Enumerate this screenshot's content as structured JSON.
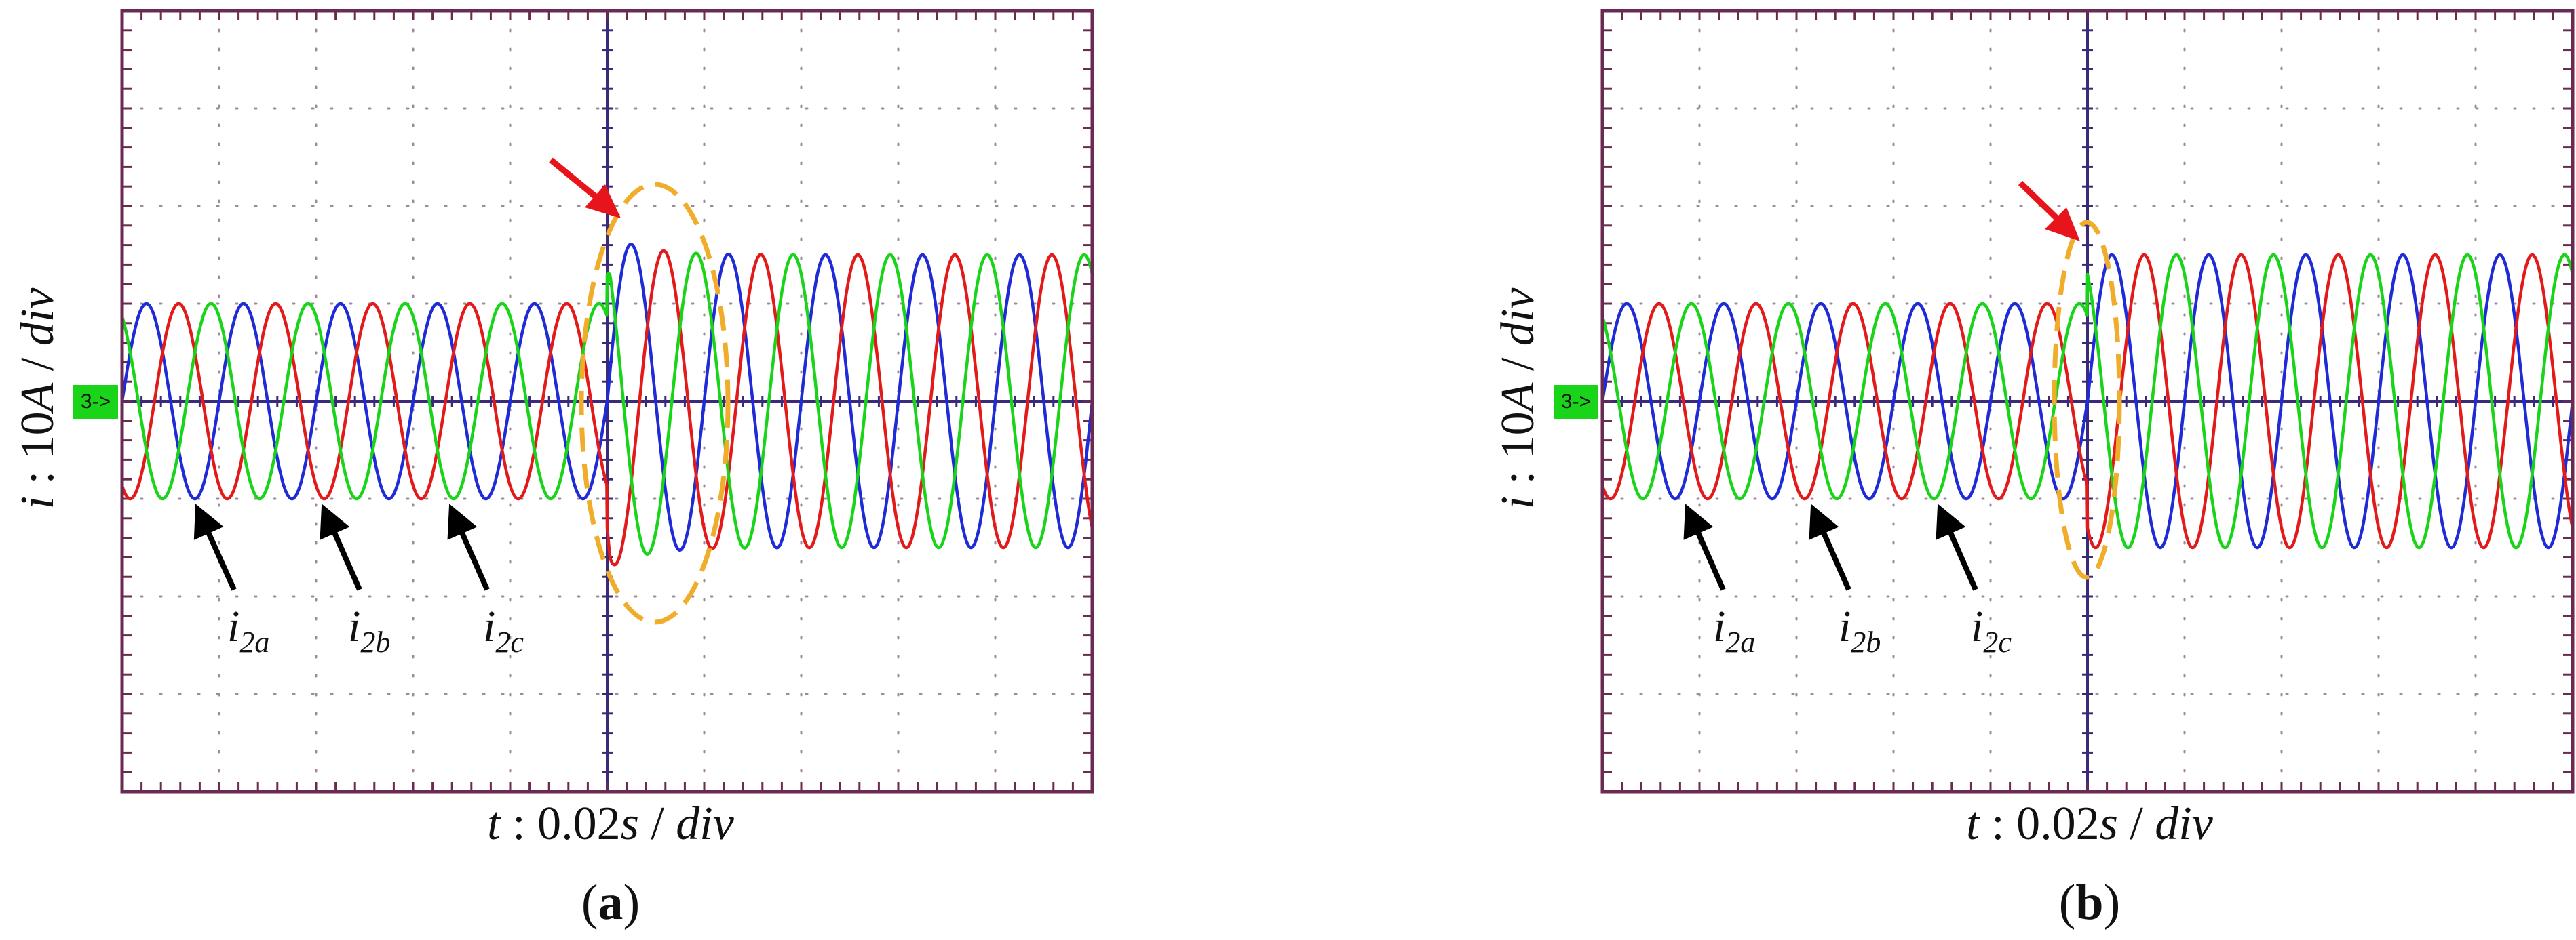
{
  "chart_data": [
    {
      "id": "a",
      "type": "line",
      "panel_label": {
        "open": "(",
        "letter": "a",
        "close": ")"
      },
      "xlabel": {
        "var": "t",
        "sep": " : ",
        "value": "0.02",
        "unit": "s",
        "slash": " / ",
        "div": "div"
      },
      "ylabel": {
        "var": "i",
        "sep": " : ",
        "value": "10",
        "unit": "A",
        "slash": " / ",
        "div": "div"
      },
      "channel_marker": "3->",
      "grid": true,
      "divisions": {
        "x": 10,
        "y": 8
      },
      "xlim_div": [
        0,
        10
      ],
      "ylim_div": [
        -4,
        4
      ],
      "transition_div": 5,
      "frequency_cycles_per_div": 1.0,
      "series": [
        {
          "name": "i2a",
          "color": "#1f2bd6",
          "phase_deg": 0,
          "amp_before": 1.0,
          "amp_after": 1.5,
          "overshoot": 1.72
        },
        {
          "name": "i2b",
          "color": "#e31a1a",
          "phase_deg": -120,
          "amp_before": 1.0,
          "amp_after": 1.5,
          "overshoot": 1.72
        },
        {
          "name": "i2c",
          "color": "#19d419",
          "phase_deg": 120,
          "amp_before": 1.0,
          "amp_after": 1.5,
          "overshoot": 1.72
        }
      ],
      "annotations": {
        "series_labels": [
          {
            "base": "i",
            "sub": "2a"
          },
          {
            "base": "i",
            "sub": "2b"
          },
          {
            "base": "i",
            "sub": "2c"
          }
        ],
        "highlight": "dashed ellipse around transient with red arrow"
      }
    },
    {
      "id": "b",
      "type": "line",
      "panel_label": {
        "open": "(",
        "letter": "b",
        "close": ")"
      },
      "xlabel": {
        "var": "t",
        "sep": " : ",
        "value": "0.02",
        "unit": "s",
        "slash": " / ",
        "div": "div"
      },
      "ylabel": {
        "var": "i",
        "sep": " : ",
        "value": "10",
        "unit": "A",
        "slash": " / ",
        "div": "div"
      },
      "channel_marker": "3->",
      "grid": true,
      "divisions": {
        "x": 10,
        "y": 8
      },
      "xlim_div": [
        0,
        10
      ],
      "ylim_div": [
        -4,
        4
      ],
      "transition_div": 5,
      "frequency_cycles_per_div": 1.0,
      "series": [
        {
          "name": "i2a",
          "color": "#1f2bd6",
          "phase_deg": 0,
          "amp_before": 1.0,
          "amp_after": 1.5,
          "overshoot": 1.5
        },
        {
          "name": "i2b",
          "color": "#e31a1a",
          "phase_deg": -120,
          "amp_before": 1.0,
          "amp_after": 1.5,
          "overshoot": 1.5
        },
        {
          "name": "i2c",
          "color": "#19d419",
          "phase_deg": 120,
          "amp_before": 1.0,
          "amp_after": 1.5,
          "overshoot": 1.5
        }
      ],
      "annotations": {
        "series_labels": [
          {
            "base": "i",
            "sub": "2a"
          },
          {
            "base": "i",
            "sub": "2b"
          },
          {
            "base": "i",
            "sub": "2c"
          }
        ],
        "highlight": "dashed ellipse around transient with red arrow"
      }
    }
  ],
  "colors": {
    "frame": "#6b2a52",
    "grid": "#9a8a9a",
    "axis": "#3b2a7a",
    "marker_bg": "#19d419",
    "highlight": "#f0ad2c",
    "arrow_red": "#e8141b",
    "arrow_black": "#000000"
  }
}
